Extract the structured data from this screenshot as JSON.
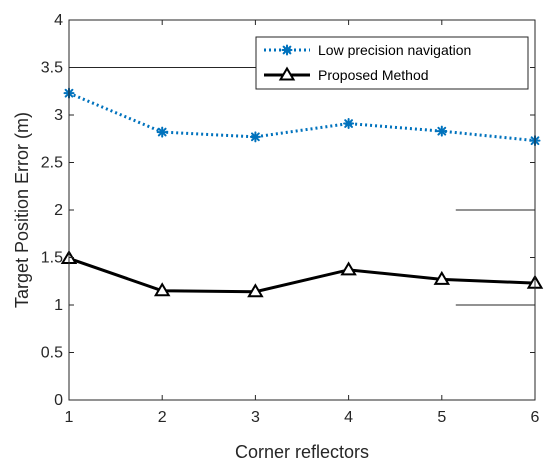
{
  "chart_data": {
    "type": "line",
    "title": "",
    "xlabel": "Corner reflectors",
    "ylabel": "Target Position Error (m)",
    "x": [
      1,
      2,
      3,
      4,
      5,
      6
    ],
    "xticks": [
      "1",
      "2",
      "3",
      "4",
      "5",
      "6"
    ],
    "yticks": [
      "0",
      "0.5",
      "1",
      "1.5",
      "2",
      "2.5",
      "3",
      "3.5",
      "4"
    ],
    "xlim": [
      1,
      6
    ],
    "ylim": [
      0,
      4
    ],
    "grid": false,
    "legend_position": "top-right",
    "series": [
      {
        "name": "Low precision navigation",
        "values": [
          3.23,
          2.82,
          2.77,
          2.91,
          2.83,
          2.73
        ],
        "color": "#0072BD",
        "line_style": "dotted",
        "marker": "asterisk"
      },
      {
        "name": "Proposed Method",
        "values": [
          1.49,
          1.15,
          1.14,
          1.37,
          1.27,
          1.23
        ],
        "color": "#000000",
        "line_style": "solid",
        "marker": "triangle"
      }
    ],
    "reference_lines": [
      {
        "y": 3.5,
        "x_from": 1,
        "x_to": 4.2
      },
      {
        "y": 2.0,
        "x_from": 5.15,
        "x_to": 6
      },
      {
        "y": 1.0,
        "x_from": 5.15,
        "x_to": 6
      }
    ]
  }
}
